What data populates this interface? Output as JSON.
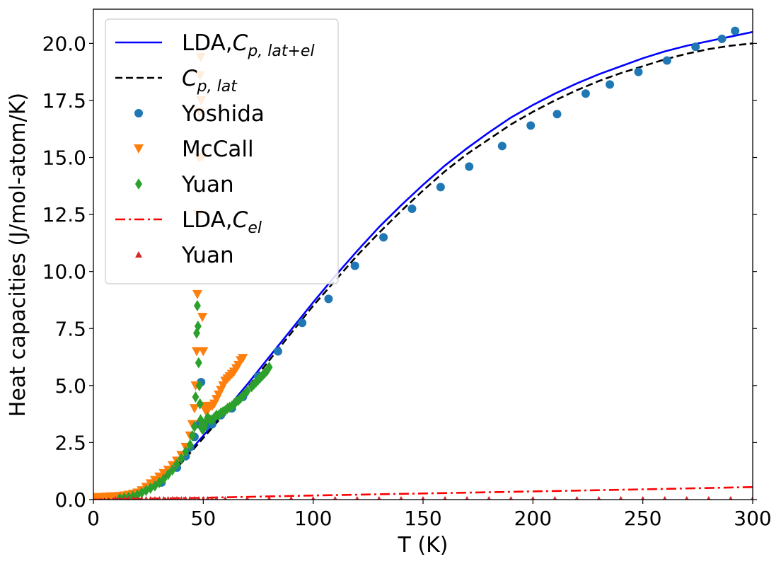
{
  "chart_data": {
    "type": "line",
    "xlabel": "T (K)",
    "ylabel": "Heat capacities (J/mol-atom/K)",
    "xlim": [
      0,
      300
    ],
    "ylim": [
      0,
      21.5
    ],
    "x_ticks": [
      "0",
      "50",
      "100",
      "150",
      "200",
      "250",
      "300"
    ],
    "y_ticks": [
      "0.0",
      "2.5",
      "5.0",
      "7.5",
      "10.0",
      "12.5",
      "15.0",
      "17.5",
      "20.0"
    ],
    "grid": false,
    "legend_position": "upper-left",
    "legend": [
      {
        "label": "LDA,",
        "math": "C",
        "sub": "p, lat+el"
      },
      {
        "label": "",
        "math": "C",
        "sub": "p, lat"
      },
      {
        "label": "Yoshida"
      },
      {
        "label": "McCall"
      },
      {
        "label": "Yuan"
      },
      {
        "label": "LDA,",
        "math": "C",
        "sub": "el"
      },
      {
        "label": "Yuan"
      }
    ],
    "series": [
      {
        "name": "LDA,Cp,lat+el",
        "kind": "line",
        "style": "solid",
        "color": "#0000ff",
        "x": [
          0,
          10,
          20,
          30,
          40,
          50,
          60,
          70,
          80,
          90,
          100,
          110,
          120,
          130,
          140,
          150,
          160,
          170,
          180,
          190,
          200,
          210,
          220,
          230,
          240,
          250,
          260,
          270,
          280,
          290,
          300
        ],
        "y": [
          0.03,
          0.08,
          0.25,
          0.8,
          1.7,
          2.8,
          3.9,
          5.05,
          6.25,
          7.45,
          8.65,
          9.8,
          10.9,
          11.95,
          12.9,
          13.8,
          14.65,
          15.4,
          16.1,
          16.75,
          17.3,
          17.8,
          18.25,
          18.65,
          19.0,
          19.35,
          19.65,
          19.9,
          20.1,
          20.3,
          20.5
        ]
      },
      {
        "name": "Cp,lat",
        "kind": "line",
        "style": "dashed",
        "color": "#000000",
        "x": [
          0,
          10,
          20,
          30,
          40,
          50,
          60,
          70,
          80,
          90,
          100,
          110,
          120,
          130,
          140,
          150,
          160,
          170,
          180,
          190,
          200,
          210,
          220,
          230,
          240,
          250,
          260,
          270,
          280,
          290,
          300
        ],
        "y": [
          0,
          0.05,
          0.2,
          0.75,
          1.6,
          2.7,
          3.8,
          4.9,
          6.1,
          7.3,
          8.5,
          9.6,
          10.7,
          11.7,
          12.65,
          13.55,
          14.4,
          15.15,
          15.8,
          16.45,
          17.0,
          17.5,
          17.95,
          18.35,
          18.7,
          19.0,
          19.3,
          19.55,
          19.75,
          19.9,
          20.0
        ]
      },
      {
        "name": "Yoshida",
        "kind": "scatter",
        "marker": "circle",
        "color": "#1f77b4",
        "x": [
          31,
          38,
          42,
          44,
          46,
          48,
          49,
          51,
          54,
          58,
          63,
          68,
          75,
          84,
          95,
          107,
          119,
          132,
          145,
          158,
          171,
          186,
          199,
          211,
          224,
          235,
          248,
          261,
          274,
          286,
          292
        ],
        "y": [
          0.75,
          1.4,
          1.9,
          2.3,
          2.75,
          3.3,
          5.15,
          3.2,
          3.3,
          3.7,
          4.0,
          4.5,
          5.4,
          6.5,
          7.75,
          8.8,
          10.25,
          11.5,
          12.75,
          13.7,
          14.6,
          15.5,
          16.4,
          16.9,
          17.8,
          18.2,
          18.75,
          19.25,
          19.85,
          20.2,
          20.55
        ]
      },
      {
        "name": "McCall",
        "kind": "scatter",
        "marker": "triangle-down",
        "color": "#ff7f0e",
        "x": [
          0,
          2,
          4,
          6,
          8,
          10,
          12,
          14,
          16,
          18,
          20,
          22,
          24,
          26,
          28,
          30,
          32,
          34,
          36,
          38,
          40,
          42,
          44,
          45,
          46,
          46.5,
          47,
          47.3,
          47.6,
          47.9,
          48.2,
          48.5,
          48.8,
          49,
          49.3,
          49.6,
          50,
          50.5,
          51,
          52,
          53,
          54,
          55,
          56,
          57,
          58,
          59,
          60,
          61,
          62,
          63,
          64,
          65,
          66,
          67,
          68
        ],
        "y": [
          0.1,
          0.1,
          0.11,
          0.12,
          0.13,
          0.14,
          0.15,
          0.17,
          0.2,
          0.25,
          0.3,
          0.4,
          0.55,
          0.7,
          0.85,
          1.0,
          1.15,
          1.3,
          1.5,
          1.7,
          1.95,
          2.3,
          2.8,
          3.3,
          4.0,
          5.0,
          6.5,
          9.0,
          12.5,
          15.0,
          17.0,
          18.6,
          19.4,
          17.5,
          15.0,
          8.0,
          6.5,
          4.1,
          3.9,
          3.9,
          4.1,
          4.1,
          4.2,
          4.4,
          4.6,
          4.8,
          5.0,
          5.2,
          5.3,
          5.4,
          5.5,
          5.6,
          5.75,
          5.9,
          6.1,
          6.2
        ]
      },
      {
        "name": "Yuan",
        "kind": "scatter",
        "marker": "diamond",
        "color": "#2ca02c",
        "x": [
          12,
          14,
          16,
          18,
          20,
          22,
          24,
          26,
          28,
          30,
          32,
          34,
          36,
          38,
          40,
          42,
          44,
          45,
          46,
          46.5,
          47,
          47.3,
          47.6,
          47.9,
          48.2,
          48.5,
          48.8,
          49.1,
          49.5,
          50,
          50.5,
          51,
          52,
          53,
          54,
          55,
          56,
          57,
          58,
          59,
          60,
          61,
          62,
          63,
          64,
          65,
          66,
          67,
          68,
          70,
          72,
          73,
          74,
          75,
          76,
          77,
          78,
          79,
          80
        ],
        "y": [
          0.05,
          0.07,
          0.1,
          0.15,
          0.2,
          0.3,
          0.4,
          0.5,
          0.6,
          0.75,
          0.9,
          1.1,
          1.3,
          1.55,
          1.8,
          2.1,
          2.4,
          2.8,
          3.2,
          4.5,
          7.3,
          8.5,
          7.6,
          6.0,
          5.0,
          4.2,
          3.5,
          3.2,
          3.1,
          3.1,
          3.2,
          3.4,
          3.6,
          3.5,
          3.5,
          3.6,
          3.7,
          3.7,
          3.8,
          3.85,
          3.9,
          4.0,
          4.05,
          4.1,
          4.2,
          4.3,
          4.35,
          4.45,
          4.55,
          4.75,
          4.95,
          5.05,
          5.15,
          5.25,
          5.35,
          5.45,
          5.55,
          5.65,
          5.8
        ]
      },
      {
        "name": "LDA,Cel",
        "kind": "line",
        "style": "dashdot",
        "color": "#ff0000",
        "x": [
          0,
          50,
          100,
          150,
          200,
          250,
          300
        ],
        "y": [
          0.0,
          0.08,
          0.18,
          0.27,
          0.36,
          0.45,
          0.55
        ]
      },
      {
        "name": "Yuan",
        "kind": "scatter",
        "marker": "triangle-up",
        "color": "#d62728",
        "x": [
          10,
          12,
          14,
          16,
          18,
          20,
          22,
          24,
          26,
          28,
          30,
          32,
          34,
          36,
          38,
          40,
          42,
          44,
          46,
          48,
          50,
          52,
          54,
          56,
          60,
          70,
          80,
          90,
          100,
          110,
          120,
          130,
          140,
          150,
          160,
          170,
          180,
          190,
          200,
          210,
          220,
          230,
          240,
          250,
          260,
          270,
          280,
          290,
          300
        ],
        "y": [
          0,
          0,
          0,
          0,
          0,
          0,
          0,
          0,
          0,
          0,
          0,
          0,
          0,
          0,
          0,
          0,
          0,
          0,
          0,
          0,
          0,
          0,
          0,
          0,
          0,
          0,
          0,
          0,
          0,
          0,
          0,
          0,
          0,
          0,
          0,
          0,
          0,
          0,
          0,
          0,
          0,
          0,
          0,
          0,
          0,
          0,
          0,
          0,
          0
        ]
      }
    ]
  }
}
